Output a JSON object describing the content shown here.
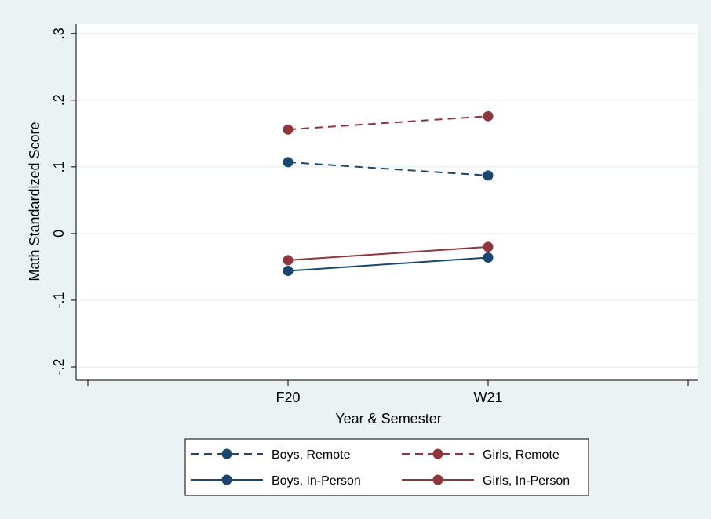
{
  "chart_data": {
    "type": "line",
    "x_label": "Year & Semester",
    "y_label": "Math Standardized Score",
    "categories": [
      null,
      "F20",
      "W21",
      null
    ],
    "series": [
      {
        "name": "Boys, Remote",
        "color": "#1a476f",
        "dash": true,
        "values": [
          null,
          0.107,
          0.087,
          null
        ]
      },
      {
        "name": "Girls, Remote",
        "color": "#90353b",
        "dash": true,
        "values": [
          null,
          0.156,
          0.176,
          null
        ]
      },
      {
        "name": "Boys, In-Person",
        "color": "#1a476f",
        "dash": false,
        "values": [
          null,
          -0.056,
          -0.036,
          null
        ]
      },
      {
        "name": "Girls, In-Person",
        "color": "#90353b",
        "dash": false,
        "values": [
          null,
          -0.04,
          -0.02,
          null
        ]
      }
    ],
    "ylim": [
      -0.22,
      0.315
    ],
    "yticks": [
      {
        "value": -0.2,
        "label": "-.2"
      },
      {
        "value": -0.1,
        "label": "-.1"
      },
      0,
      {
        "value": 0.1,
        "label": ".1"
      },
      {
        "value": 0.2,
        "label": ".2"
      },
      {
        "value": 0.3,
        "label": ".3"
      }
    ],
    "grid": true
  }
}
